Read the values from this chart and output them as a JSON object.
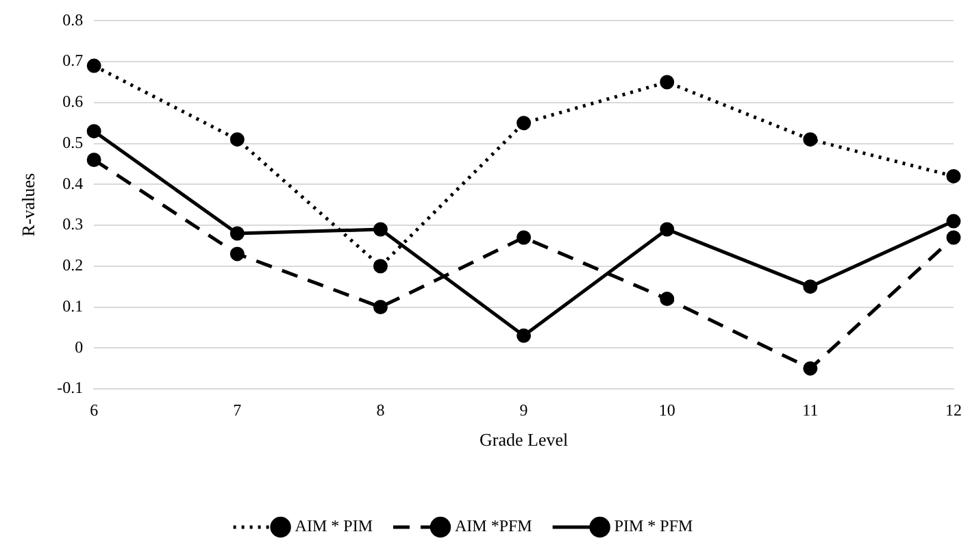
{
  "chart_data": {
    "type": "line",
    "xlabel": "Grade Level",
    "ylabel": "R-values",
    "categories": [
      "6",
      "7",
      "8",
      "9",
      "10",
      "11",
      "12"
    ],
    "series": [
      {
        "name": "AIM * PIM",
        "color": "#000000",
        "line_style": "dotted",
        "values": [
          0.69,
          0.51,
          0.2,
          0.55,
          0.65,
          0.51,
          0.42
        ]
      },
      {
        "name": "AIM *PFM",
        "color": "#000000",
        "line_style": "dashed",
        "values": [
          0.46,
          0.23,
          0.1,
          0.27,
          0.12,
          -0.05,
          0.27
        ]
      },
      {
        "name": "PIM * PFM",
        "color": "#000000",
        "line_style": "solid",
        "values": [
          0.53,
          0.28,
          0.29,
          0.03,
          0.29,
          0.15,
          0.31
        ]
      }
    ],
    "ylim": [
      -0.1,
      0.8
    ],
    "yticks": [
      -0.1,
      0,
      0.1,
      0.2,
      0.3,
      0.4,
      0.5,
      0.6,
      0.7,
      0.8
    ],
    "grid": "y",
    "legend": "bottom",
    "marker": "circle"
  }
}
